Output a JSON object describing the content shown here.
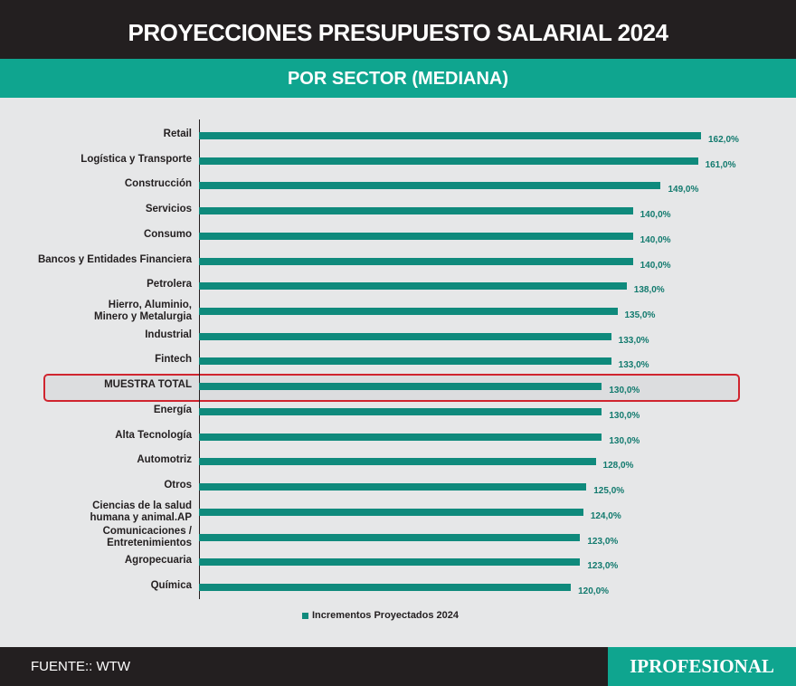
{
  "header": {
    "title": "PROYECCIONES PRESUPUESTO SALARIAL 2024",
    "subtitle": "POR SECTOR (MEDIANA)"
  },
  "chart_data": {
    "type": "bar",
    "orientation": "horizontal",
    "categories": [
      "Retail",
      "Logística y Transporte",
      "Construcción",
      "Servicios",
      "Consumo",
      "Bancos y Entidades Financiera",
      "Petrolera",
      "Hierro, Aluminio,\nMinero y Metalurgia",
      "Industrial",
      "Fintech",
      "MUESTRA TOTAL",
      "Energía",
      "Alta Tecnología",
      "Automotriz",
      "Otros",
      "Ciencias de la salud\nhumana y animal.AP",
      "Comunicaciones /\nEntretenimientos",
      "Agropecuaria",
      "Química"
    ],
    "series": [
      {
        "name": "Incrementos Proyectados 2024",
        "color": "#0f8a7c",
        "values": [
          162,
          161,
          149,
          140,
          140,
          140,
          138,
          135,
          133,
          133,
          130,
          130,
          130,
          128,
          125,
          124,
          123,
          123,
          120
        ],
        "value_labels": [
          "162,0%",
          "161,0%",
          "149,0%",
          "140,0%",
          "140,0%",
          "140,0%",
          "138,0%",
          "135,0%",
          "133,0%",
          "133,0%",
          "130,0%",
          "130,0%",
          "130,0%",
          "128,0%",
          "125,0%",
          "124,0%",
          "123,0%",
          "123,0%",
          "120,0%"
        ]
      }
    ],
    "highlight": 10
  },
  "footer": {
    "source": "FUENTE:: WTW",
    "brand": "IPROFESIONAL"
  }
}
